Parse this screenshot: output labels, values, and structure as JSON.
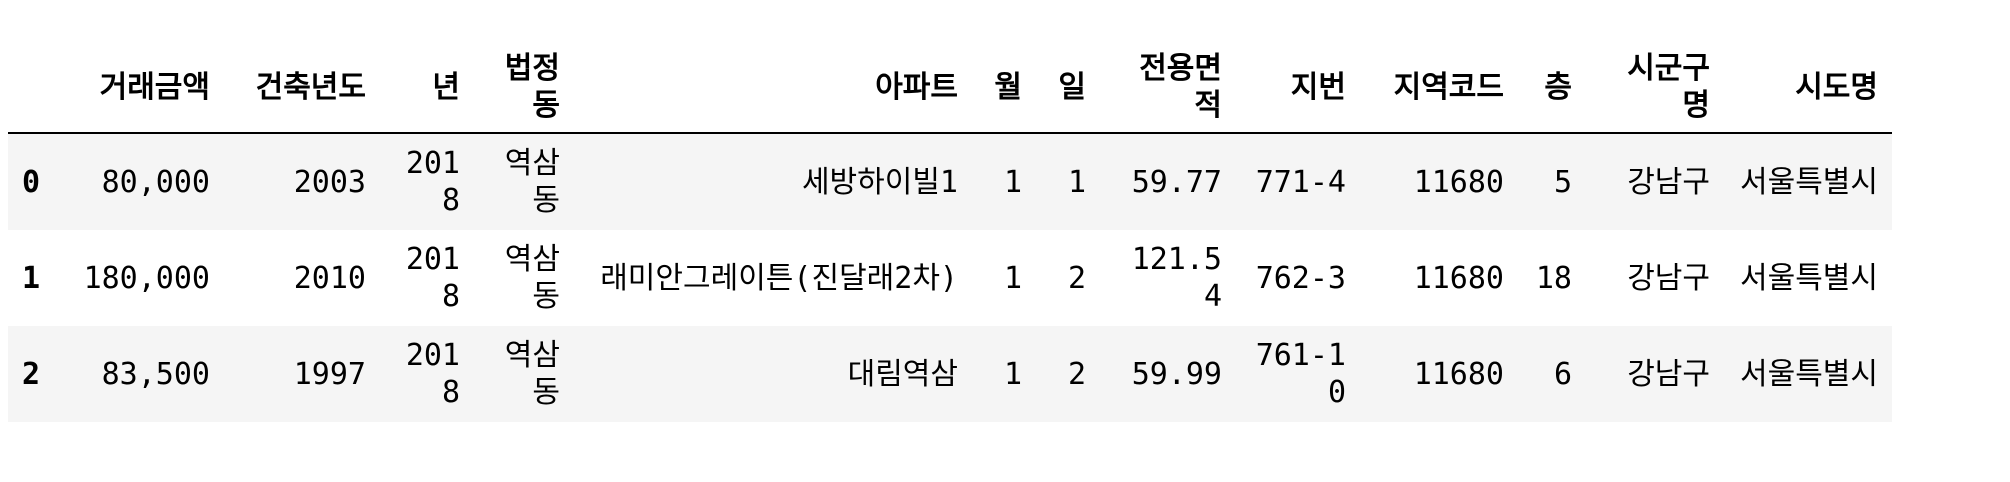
{
  "table": {
    "columns": [
      "",
      "거래금액",
      "건축년도",
      "년",
      "법정동",
      "아파트",
      "월",
      "일",
      "전용면적",
      "지번",
      "지역코드",
      "층",
      "시군구명",
      "시도명"
    ],
    "rows": [
      [
        "0",
        "80,000",
        "2003",
        "2018",
        "역삼동",
        "세방하이빌1",
        "1",
        "1",
        "59.77",
        "771-4",
        "11680",
        "5",
        "강남구",
        "서울특별시"
      ],
      [
        "1",
        "180,000",
        "2010",
        "2018",
        "역삼동",
        "래미안그레이튼(진달래2차)",
        "1",
        "2",
        "121.54",
        "762-3",
        "11680",
        "18",
        "강남구",
        "서울특별시"
      ],
      [
        "2",
        "83,500",
        "1997",
        "2018",
        "역삼동",
        "대림역삼",
        "1",
        "2",
        "59.99",
        "761-10",
        "11680",
        "6",
        "강남구",
        "서울특별시"
      ]
    ]
  }
}
